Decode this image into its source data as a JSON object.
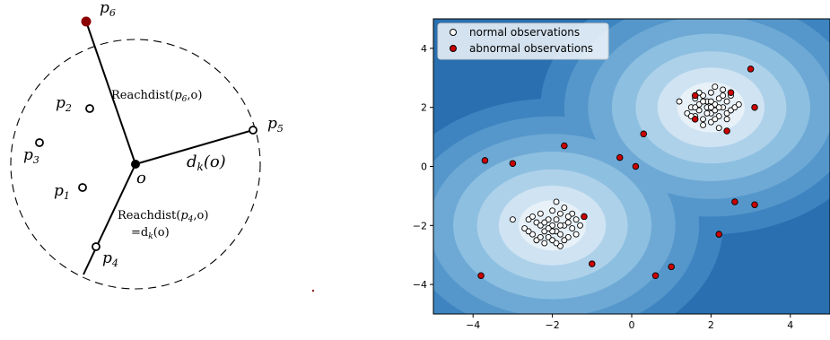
{
  "reach_diagram": {
    "center_label": "o",
    "points": [
      {
        "id": "p6",
        "text": "p",
        "sub": "6",
        "highlight": true
      },
      {
        "id": "p2",
        "text": "p",
        "sub": "2",
        "highlight": false
      },
      {
        "id": "p3",
        "text": "p",
        "sub": "3",
        "highlight": false
      },
      {
        "id": "p1",
        "text": "p",
        "sub": "1",
        "highlight": false
      },
      {
        "id": "p5",
        "text": "p",
        "sub": "5",
        "highlight": false
      },
      {
        "id": "p4",
        "text": "p",
        "sub": "4",
        "highlight": false
      }
    ],
    "annotations": {
      "reach_p6": {
        "pre": "Reachdist(",
        "var": "p",
        "sub": "6",
        "post": ",o)"
      },
      "dk": {
        "pre": "d",
        "sub": "k",
        "post": "(o)"
      },
      "reach_p4_line1": {
        "pre": "Reachdist(",
        "var": "p",
        "sub": "4",
        "post": ",o)"
      },
      "reach_p4_line2": {
        "pre": "=d",
        "sub": "k",
        "post": "(o)"
      }
    },
    "colors": {
      "highlight": "#8b0000",
      "line": "#000000"
    }
  },
  "chart_data": {
    "type": "scatter",
    "title": "",
    "xlabel": "",
    "ylabel": "",
    "xlim": [
      -5,
      5
    ],
    "ylim": [
      -5,
      5
    ],
    "xticks": [
      -4,
      -2,
      0,
      2,
      4
    ],
    "yticks": [
      -4,
      -2,
      0,
      2,
      4
    ],
    "tick_labels_x": [
      "−4",
      "−2",
      "0",
      "2",
      "4"
    ],
    "tick_labels_y": [
      "−4",
      "−2",
      "0",
      "2",
      "4"
    ],
    "legend": {
      "placement": "top-left",
      "entries": [
        "normal observations",
        "abnormal observations"
      ]
    },
    "cluster_centers": [
      [
        2,
        2
      ],
      [
        -2,
        -2
      ]
    ],
    "colors": {
      "normal_fill": "#ffffff",
      "normal_edge": "#000000",
      "abnormal_fill": "#cc0000",
      "abnormal_edge": "#000000"
    },
    "contour_colors": [
      "#2a6fb0",
      "#3e84c0",
      "#5597cb",
      "#6ea9d5",
      "#8dbfe0",
      "#aed1ea",
      "#cfe3f2",
      "#e8f1f8"
    ],
    "series": [
      {
        "name": "normal observations",
        "points": [
          [
            1.2,
            2.2
          ],
          [
            1.4,
            1.8
          ],
          [
            1.5,
            2.0
          ],
          [
            1.6,
            2.3
          ],
          [
            1.6,
            1.7
          ],
          [
            1.7,
            2.1
          ],
          [
            1.7,
            1.9
          ],
          [
            1.8,
            2.4
          ],
          [
            1.8,
            1.6
          ],
          [
            1.9,
            2.0
          ],
          [
            1.9,
            2.2
          ],
          [
            2.0,
            1.8
          ],
          [
            2.0,
            2.5
          ],
          [
            2.0,
            1.5
          ],
          [
            2.1,
            2.1
          ],
          [
            2.1,
            1.9
          ],
          [
            2.2,
            2.3
          ],
          [
            2.2,
            1.7
          ],
          [
            2.3,
            2.0
          ],
          [
            2.3,
            2.6
          ],
          [
            2.4,
            1.8
          ],
          [
            2.4,
            2.2
          ],
          [
            2.5,
            1.9
          ],
          [
            2.5,
            2.4
          ],
          [
            2.6,
            2.0
          ],
          [
            1.7,
            2.5
          ],
          [
            1.8,
            1.4
          ],
          [
            2.0,
            2.0
          ],
          [
            2.1,
            2.7
          ],
          [
            2.2,
            1.3
          ],
          [
            1.9,
            1.8
          ],
          [
            2.3,
            2.4
          ],
          [
            1.6,
            2.0
          ],
          [
            2.4,
            1.6
          ],
          [
            2.0,
            2.2
          ],
          [
            2.7,
            2.1
          ],
          [
            1.5,
            1.7
          ],
          [
            2.2,
            2.0
          ],
          [
            1.8,
            2.2
          ],
          [
            2.1,
            1.6
          ],
          [
            -3.0,
            -1.8
          ],
          [
            -2.7,
            -2.1
          ],
          [
            -2.6,
            -1.8
          ],
          [
            -2.5,
            -2.3
          ],
          [
            -2.4,
            -1.9
          ],
          [
            -2.4,
            -2.5
          ],
          [
            -2.3,
            -2.0
          ],
          [
            -2.3,
            -1.6
          ],
          [
            -2.2,
            -2.2
          ],
          [
            -2.2,
            -2.6
          ],
          [
            -2.1,
            -1.8
          ],
          [
            -2.1,
            -2.4
          ],
          [
            -2.0,
            -1.5
          ],
          [
            -2.0,
            -2.0
          ],
          [
            -2.0,
            -2.5
          ],
          [
            -1.9,
            -2.2
          ],
          [
            -1.9,
            -1.8
          ],
          [
            -1.9,
            -1.2
          ],
          [
            -1.8,
            -2.3
          ],
          [
            -1.8,
            -1.6
          ],
          [
            -1.8,
            -2.7
          ],
          [
            -1.7,
            -2.0
          ],
          [
            -1.7,
            -1.4
          ],
          [
            -1.6,
            -2.4
          ],
          [
            -1.6,
            -1.9
          ],
          [
            -1.5,
            -2.1
          ],
          [
            -1.5,
            -1.6
          ],
          [
            -1.4,
            -2.3
          ],
          [
            -1.4,
            -1.8
          ],
          [
            -1.3,
            -2.0
          ],
          [
            -2.6,
            -2.2
          ],
          [
            -2.5,
            -1.7
          ],
          [
            -2.2,
            -1.9
          ],
          [
            -2.0,
            -2.2
          ],
          [
            -1.8,
            -2.0
          ],
          [
            -2.1,
            -2.1
          ],
          [
            -1.7,
            -2.5
          ],
          [
            -2.3,
            -2.4
          ],
          [
            -1.6,
            -1.7
          ],
          [
            -1.9,
            -2.6
          ]
        ]
      },
      {
        "name": "abnormal observations",
        "points": [
          [
            -3.7,
            0.2
          ],
          [
            -3.0,
            0.1
          ],
          [
            -1.7,
            0.7
          ],
          [
            -0.3,
            0.3
          ],
          [
            0.1,
            0.0
          ],
          [
            0.3,
            1.1
          ],
          [
            -1.2,
            -1.7
          ],
          [
            -1.0,
            -3.3
          ],
          [
            -3.8,
            -3.7
          ],
          [
            0.6,
            -3.7
          ],
          [
            1.0,
            -3.4
          ],
          [
            2.2,
            -2.3
          ],
          [
            2.6,
            -1.2
          ],
          [
            3.1,
            -1.3
          ],
          [
            2.4,
            1.2
          ],
          [
            3.0,
            3.3
          ],
          [
            3.1,
            2.0
          ],
          [
            1.6,
            2.4
          ],
          [
            2.5,
            2.5
          ],
          [
            1.6,
            1.6
          ]
        ]
      }
    ]
  }
}
